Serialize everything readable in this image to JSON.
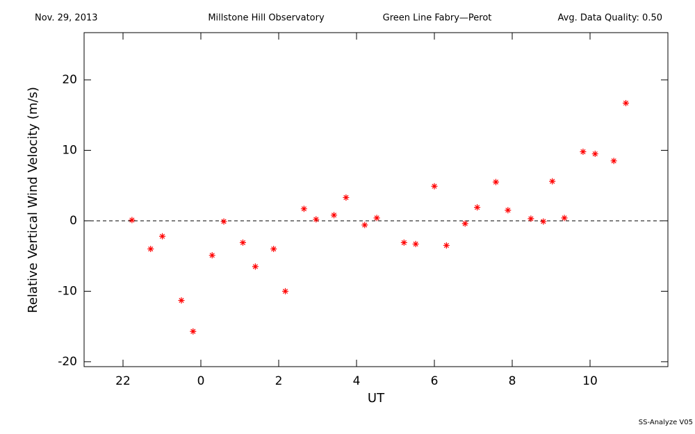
{
  "chart_data": {
    "type": "scatter",
    "date": "Nov. 29, 2013",
    "observatory": "Millstone Hill Observatory",
    "instrument": "Green Line Fabry—Perot",
    "quality": "Avg. Data Quality: 0.50",
    "software": "SS-Analyze V05",
    "xlabel": "UT",
    "ylabel": "Relative Vertical Wind Velocity (m/s)",
    "color": "#ff0000",
    "reference_line": 0,
    "xlim": [
      21,
      36
    ],
    "xticks": [
      {
        "value": 22,
        "label": "22"
      },
      {
        "value": 24,
        "label": "0"
      },
      {
        "value": 26,
        "label": "2"
      },
      {
        "value": 28,
        "label": "4"
      },
      {
        "value": 30,
        "label": "6"
      },
      {
        "value": 32,
        "label": "8"
      },
      {
        "value": 34,
        "label": "10"
      }
    ],
    "ylim": [
      -20.7,
      26.7
    ],
    "yticks": [
      -20,
      -10,
      0,
      10,
      20
    ],
    "x": [
      22.23,
      22.71,
      23.01,
      23.5,
      23.8,
      24.29,
      24.59,
      25.08,
      25.4,
      25.87,
      26.17,
      26.65,
      26.96,
      27.42,
      27.73,
      28.21,
      28.52,
      29.22,
      29.52,
      30.0,
      30.31,
      30.79,
      31.1,
      31.58,
      31.89,
      32.48,
      32.8,
      33.03,
      33.34,
      33.82,
      34.13,
      34.61,
      34.92
    ],
    "values": [
      0.1,
      -4.0,
      -2.2,
      -11.3,
      -15.7,
      -4.9,
      -0.1,
      -3.1,
      -6.5,
      -4.0,
      -10.0,
      1.7,
      0.2,
      0.8,
      3.3,
      -0.6,
      0.4,
      -3.1,
      -3.3,
      4.9,
      -3.5,
      -0.4,
      1.9,
      5.5,
      1.5,
      0.3,
      -0.1,
      5.6,
      0.4,
      9.8,
      9.5,
      8.5,
      16.7
    ]
  }
}
